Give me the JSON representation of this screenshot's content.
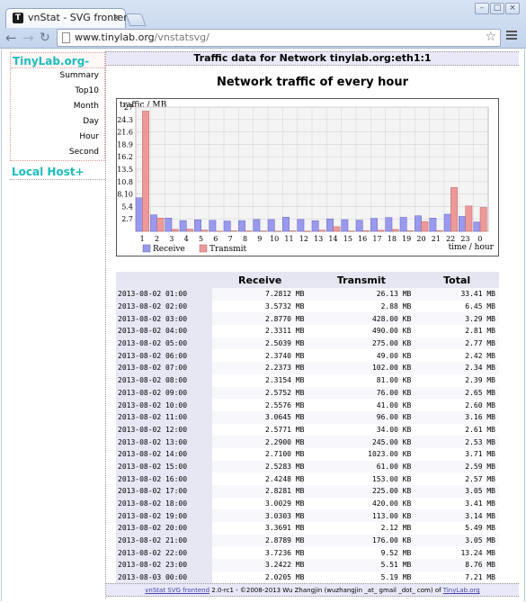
{
  "browser": {
    "tab_title": "vnStat - SVG frontend",
    "favicon_letter": "T",
    "url_host": "www.tinylab.org",
    "url_path": "/vnstatsvg/"
  },
  "sidebar": {
    "group_title": "TinyLab.org-",
    "items": [
      "Summary",
      "Top10",
      "Month",
      "Day",
      "Hour",
      "Second"
    ],
    "local_host": "Local Host+"
  },
  "header": {
    "title": "Traffic data for Network tinylab.org:eth1:1"
  },
  "page_title": "Network traffic of every hour",
  "chart_data": {
    "type": "bar",
    "ylabel": "traffic / MB",
    "xlabel": "time / hour",
    "y_ticks": [
      "27",
      "24.3",
      "21.6",
      "18.9",
      "16.2",
      "13.5",
      "10.8",
      "8.10",
      "5.4",
      "2.7"
    ],
    "ylim": [
      0,
      27
    ],
    "categories": [
      "1",
      "2",
      "3",
      "4",
      "5",
      "6",
      "7",
      "8",
      "9",
      "10",
      "11",
      "12",
      "13",
      "14",
      "15",
      "16",
      "17",
      "18",
      "19",
      "20",
      "21",
      "22",
      "23",
      "0"
    ],
    "series": [
      {
        "name": "Receive",
        "color": "#9999ee",
        "values": [
          7.2812,
          3.5732,
          2.877,
          2.3311,
          2.5039,
          2.374,
          2.2373,
          2.3154,
          2.5752,
          2.5576,
          3.0645,
          2.5771,
          2.29,
          2.71,
          2.5283,
          2.4248,
          2.8281,
          3.0029,
          3.0303,
          3.3691,
          2.8789,
          3.7236,
          3.2422,
          2.0205
        ]
      },
      {
        "name": "Transmit",
        "color": "#ee9999",
        "values": [
          26.13,
          2.88,
          0.418,
          0.479,
          0.269,
          0.048,
          0.1,
          0.079,
          0.074,
          0.04,
          0.094,
          0.033,
          0.239,
          0.999,
          0.06,
          0.149,
          0.22,
          0.41,
          0.11,
          2.12,
          0.172,
          9.52,
          5.51,
          5.19
        ]
      }
    ],
    "legend_placement": "bottom-left",
    "grid": true
  },
  "table": {
    "headers": [
      "",
      "Receive",
      "Transmit",
      "Total"
    ],
    "rows": [
      [
        "2013-08-02 01:00",
        "7.2812 MB",
        "26.13 MB",
        "33.41 MB"
      ],
      [
        "2013-08-02 02:00",
        "3.5732 MB",
        "2.88 MB",
        "6.45 MB"
      ],
      [
        "2013-08-02 03:00",
        "2.8770 MB",
        "428.00 KB",
        "3.29 MB"
      ],
      [
        "2013-08-02 04:00",
        "2.3311 MB",
        "490.00 KB",
        "2.81 MB"
      ],
      [
        "2013-08-02 05:00",
        "2.5039 MB",
        "275.00 KB",
        "2.77 MB"
      ],
      [
        "2013-08-02 06:00",
        "2.3740 MB",
        "49.00 KB",
        "2.42 MB"
      ],
      [
        "2013-08-02 07:00",
        "2.2373 MB",
        "102.00 KB",
        "2.34 MB"
      ],
      [
        "2013-08-02 08:00",
        "2.3154 MB",
        "81.00 KB",
        "2.39 MB"
      ],
      [
        "2013-08-02 09:00",
        "2.5752 MB",
        "76.00 KB",
        "2.65 MB"
      ],
      [
        "2013-08-02 10:00",
        "2.5576 MB",
        "41.00 KB",
        "2.60 MB"
      ],
      [
        "2013-08-02 11:00",
        "3.0645 MB",
        "96.00 KB",
        "3.16 MB"
      ],
      [
        "2013-08-02 12:00",
        "2.5771 MB",
        "34.00 KB",
        "2.61 MB"
      ],
      [
        "2013-08-02 13:00",
        "2.2900 MB",
        "245.00 KB",
        "2.53 MB"
      ],
      [
        "2013-08-02 14:00",
        "2.7100 MB",
        "1023.00 KB",
        "3.71 MB"
      ],
      [
        "2013-08-02 15:00",
        "2.5283 MB",
        "61.00 KB",
        "2.59 MB"
      ],
      [
        "2013-08-02 16:00",
        "2.4248 MB",
        "153.00 KB",
        "2.57 MB"
      ],
      [
        "2013-08-02 17:00",
        "2.8281 MB",
        "225.00 KB",
        "3.05 MB"
      ],
      [
        "2013-08-02 18:00",
        "3.0029 MB",
        "420.00 KB",
        "3.41 MB"
      ],
      [
        "2013-08-02 19:00",
        "3.0303 MB",
        "113.00 KB",
        "3.14 MB"
      ],
      [
        "2013-08-02 20:00",
        "3.3691 MB",
        "2.12 MB",
        "5.49 MB"
      ],
      [
        "2013-08-02 21:00",
        "2.8789 MB",
        "176.00 KB",
        "3.05 MB"
      ],
      [
        "2013-08-02 22:00",
        "3.7236 MB",
        "9.52 MB",
        "13.24 MB"
      ],
      [
        "2013-08-02 23:00",
        "3.2422 MB",
        "5.51 MB",
        "8.76 MB"
      ],
      [
        "2013-08-03 00:00",
        "2.0205 MB",
        "5.19 MB",
        "7.21 MB"
      ]
    ]
  },
  "footer": {
    "link1": "vnStat SVG frontend",
    "text": " 2.0-rc1 - ©2008-2013 Wu Zhangjin (wuzhangjin _at_ gmail _dot_ com) of ",
    "link2": "TinyLab.org"
  }
}
